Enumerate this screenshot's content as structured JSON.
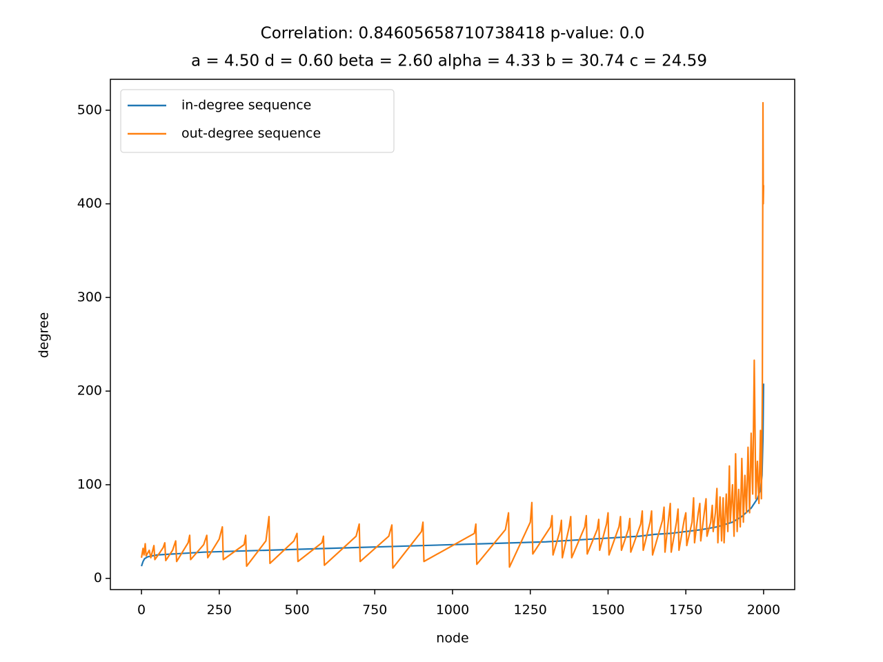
{
  "chart_data": {
    "type": "line",
    "title": "Correlation: 0.8460565871073841​8 p-value: 0.0",
    "subtitle": "a = 4.50 d = 0.60 beta = 2.60 alpha = 4.33 b = 30.74 c = 24.59",
    "xlabel": "node",
    "ylabel": "degree",
    "xlim": [
      -100,
      2100
    ],
    "ylim": [
      -12,
      533
    ],
    "xticks": [
      0,
      250,
      500,
      750,
      1000,
      1250,
      1500,
      1750,
      2000
    ],
    "yticks": [
      0,
      100,
      200,
      300,
      400,
      500
    ],
    "grid": false,
    "legend": "upper left",
    "series": [
      {
        "name": "in-degree sequence",
        "color": "#1f77b4",
        "x": [
          0,
          5,
          10,
          20,
          50,
          100,
          200,
          300,
          400,
          500,
          600,
          700,
          800,
          900,
          1000,
          1100,
          1200,
          1300,
          1400,
          1500,
          1550,
          1600,
          1650,
          1700,
          1750,
          1800,
          1850,
          1900,
          1930,
          1960,
          1980,
          1990,
          1995,
          1998,
          2000
        ],
        "values": [
          13,
          18,
          21,
          23,
          25,
          26,
          28,
          29,
          30,
          31,
          32,
          33,
          34,
          35,
          36,
          37,
          38,
          39,
          41,
          43,
          44,
          45,
          47,
          48,
          50,
          52,
          55,
          60,
          66,
          75,
          85,
          95,
          110,
          150,
          208
        ]
      },
      {
        "name": "out-degree sequence",
        "color": "#ff7f0e",
        "x": [
          0,
          5,
          8,
          12,
          15,
          25,
          30,
          40,
          43,
          60,
          70,
          75,
          78,
          100,
          110,
          113,
          150,
          155,
          158,
          200,
          210,
          213,
          250,
          260,
          263,
          330,
          335,
          338,
          400,
          410,
          413,
          490,
          500,
          503,
          580,
          585,
          588,
          690,
          700,
          703,
          795,
          805,
          808,
          900,
          905,
          908,
          1070,
          1075,
          1078,
          1170,
          1180,
          1183,
          1250,
          1255,
          1258,
          1315,
          1320,
          1323,
          1345,
          1350,
          1353,
          1375,
          1380,
          1383,
          1425,
          1430,
          1433,
          1465,
          1470,
          1473,
          1495,
          1500,
          1503,
          1535,
          1540,
          1543,
          1565,
          1570,
          1573,
          1605,
          1610,
          1613,
          1635,
          1640,
          1643,
          1675,
          1680,
          1683,
          1695,
          1700,
          1703,
          1720,
          1725,
          1728,
          1745,
          1750,
          1753,
          1770,
          1775,
          1778,
          1790,
          1795,
          1798,
          1810,
          1815,
          1818,
          1830,
          1835,
          1838,
          1845,
          1850,
          1853,
          1860,
          1865,
          1870,
          1873,
          1880,
          1885,
          1890,
          1893,
          1900,
          1905,
          1910,
          1915,
          1920,
          1925,
          1930,
          1935,
          1940,
          1945,
          1950,
          1955,
          1960,
          1965,
          1970,
          1975,
          1980,
          1985,
          1990,
          1993,
          1996,
          1998,
          1999,
          2000
        ],
        "values": [
          22,
          32,
          25,
          37,
          24,
          30,
          22,
          35,
          20,
          28,
          33,
          38,
          19,
          30,
          40,
          18,
          38,
          46,
          20,
          36,
          46,
          22,
          42,
          55,
          20,
          36,
          46,
          13,
          40,
          66,
          16,
          40,
          48,
          18,
          38,
          45,
          14,
          45,
          58,
          18,
          45,
          57,
          11,
          50,
          60,
          18,
          48,
          58,
          15,
          52,
          70,
          12,
          60,
          81,
          26,
          55,
          67,
          25,
          50,
          62,
          22,
          55,
          66,
          22,
          55,
          67,
          26,
          52,
          63,
          30,
          58,
          70,
          25,
          55,
          66,
          30,
          52,
          64,
          28,
          58,
          72,
          30,
          60,
          72,
          25,
          62,
          76,
          28,
          65,
          80,
          28,
          60,
          74,
          30,
          63,
          70,
          35,
          60,
          86,
          38,
          70,
          80,
          40,
          72,
          85,
          45,
          60,
          78,
          50,
          70,
          96,
          38,
          87,
          40,
          86,
          38,
          90,
          50,
          120,
          60,
          100,
          45,
          133,
          50,
          95,
          55,
          128,
          60,
          110,
          70,
          140,
          70,
          155,
          90,
          233,
          85,
          125,
          80,
          158,
          85,
          200,
          508,
          400,
          420
        ]
      }
    ]
  }
}
